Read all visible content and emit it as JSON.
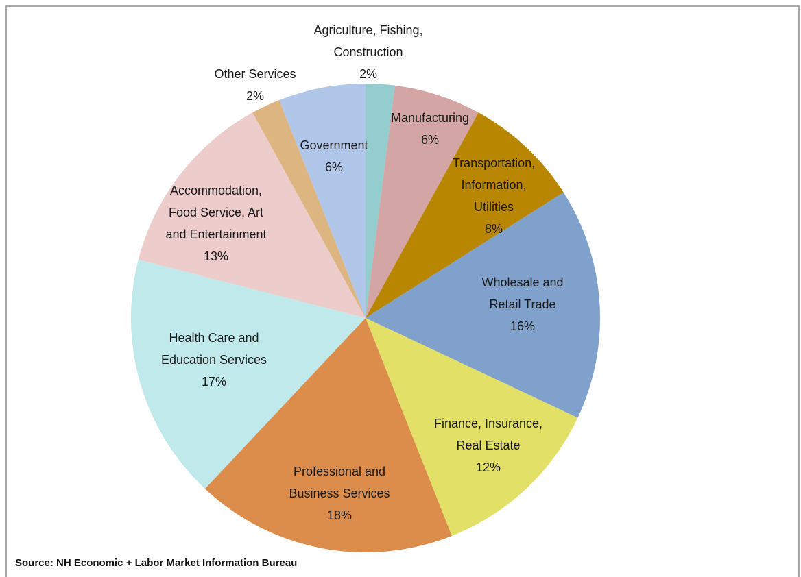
{
  "chart_data": {
    "type": "pie",
    "categories": [
      "Agriculture, Fishing, Construction",
      "Manufacturing",
      "Transportation, Information, Utilities",
      "Wholesale and Retail Trade",
      "Finance, Insurance, Real Estate",
      "Professional and Business Services",
      "Health Care and Education Services",
      "Accommodation, Food Service, Art and Entertainment",
      "Other Services",
      "Government"
    ],
    "values": [
      2,
      6,
      8,
      16,
      12,
      18,
      17,
      13,
      2,
      6
    ],
    "value_labels": [
      "2%",
      "6%",
      "8%",
      "16%",
      "12%",
      "18%",
      "17%",
      "13%",
      "2%",
      "6%"
    ],
    "colors": [
      "#93cdcd",
      "#d4a5a5",
      "#b88600",
      "#7fa1cb",
      "#e2e067",
      "#dc8d4c",
      "#c0e9ec",
      "#edcdcc",
      "#ddb581",
      "#b0c7ea"
    ],
    "source": "Source:  NH Economic + Labor Market Information Bureau"
  }
}
